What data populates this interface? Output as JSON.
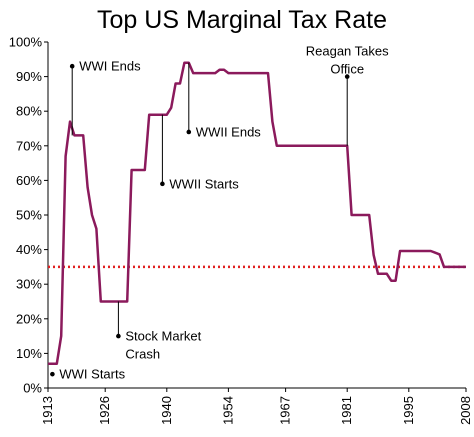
{
  "chart_data": {
    "type": "line",
    "title": "Top US Marginal Tax Rate",
    "xlabel": "",
    "ylabel": "",
    "xlim": [
      1913,
      2008
    ],
    "ylim": [
      0,
      100
    ],
    "x_ticks": [
      1913,
      1926,
      1940,
      1954,
      1967,
      1981,
      1995,
      2008
    ],
    "y_ticks": [
      {
        "value": 0,
        "label": "0%"
      },
      {
        "value": 10,
        "label": "10%"
      },
      {
        "value": 20,
        "label": "20%"
      },
      {
        "value": 30,
        "label": "30%"
      },
      {
        "value": 40,
        "label": "40%"
      },
      {
        "value": 50,
        "label": "50%"
      },
      {
        "value": 60,
        "label": "60%"
      },
      {
        "value": 70,
        "label": "70%"
      },
      {
        "value": 80,
        "label": "80%"
      },
      {
        "value": 90,
        "label": "90%"
      },
      {
        "value": 100,
        "label": "100%"
      }
    ],
    "grid": false,
    "legend": "none",
    "series": [
      {
        "color": "#8b1a5c",
        "points": [
          [
            1913,
            7
          ],
          [
            1915,
            7
          ],
          [
            1916,
            15
          ],
          [
            1917,
            67
          ],
          [
            1918,
            77
          ],
          [
            1919,
            73
          ],
          [
            1921,
            73
          ],
          [
            1922,
            58
          ],
          [
            1923,
            50
          ],
          [
            1924,
            46
          ],
          [
            1925,
            25
          ],
          [
            1931,
            25
          ],
          [
            1932,
            63
          ],
          [
            1935,
            63
          ],
          [
            1936,
            79
          ],
          [
            1940,
            79
          ],
          [
            1941,
            81
          ],
          [
            1942,
            88
          ],
          [
            1943,
            88
          ],
          [
            1944,
            94
          ],
          [
            1945,
            94
          ],
          [
            1946,
            91
          ],
          [
            1951,
            91
          ],
          [
            1952,
            92
          ],
          [
            1953,
            92
          ],
          [
            1954,
            91
          ],
          [
            1963,
            91
          ],
          [
            1964,
            77
          ],
          [
            1965,
            70
          ],
          [
            1981,
            70
          ],
          [
            1982,
            50
          ],
          [
            1986,
            50
          ],
          [
            1987,
            38.5
          ],
          [
            1988,
            33
          ],
          [
            1990,
            33
          ],
          [
            1991,
            31
          ],
          [
            1992,
            31
          ],
          [
            1993,
            39.6
          ],
          [
            2000,
            39.6
          ],
          [
            2001,
            39.1
          ],
          [
            2002,
            38.6
          ],
          [
            2003,
            35
          ],
          [
            2008,
            35
          ]
        ]
      }
    ],
    "reference_line": {
      "value": 35,
      "style": "dotted",
      "color": "#e02020"
    },
    "annotations": [
      {
        "lines": [
          "WWI Starts"
        ],
        "year": 1914,
        "point_value": 4,
        "anchor": "start"
      },
      {
        "lines": [
          "WWI Ends"
        ],
        "year": 1918.5,
        "point_value": 93,
        "value": 73,
        "anchor": "start"
      },
      {
        "lines": [
          "Stock Market",
          "Crash"
        ],
        "year": 1929,
        "point_value": 15,
        "value": 25,
        "anchor": "start"
      },
      {
        "lines": [
          "WWII Starts"
        ],
        "year": 1939,
        "point_value": 59,
        "value": 79,
        "anchor": "start"
      },
      {
        "lines": [
          "WWII Ends"
        ],
        "year": 1945,
        "point_value": 74,
        "value": 94,
        "anchor": "start"
      },
      {
        "lines": [
          "Reagan Takes",
          "Office"
        ],
        "year": 1981,
        "point_value": 90,
        "value": 70,
        "anchor": "middle"
      }
    ]
  }
}
